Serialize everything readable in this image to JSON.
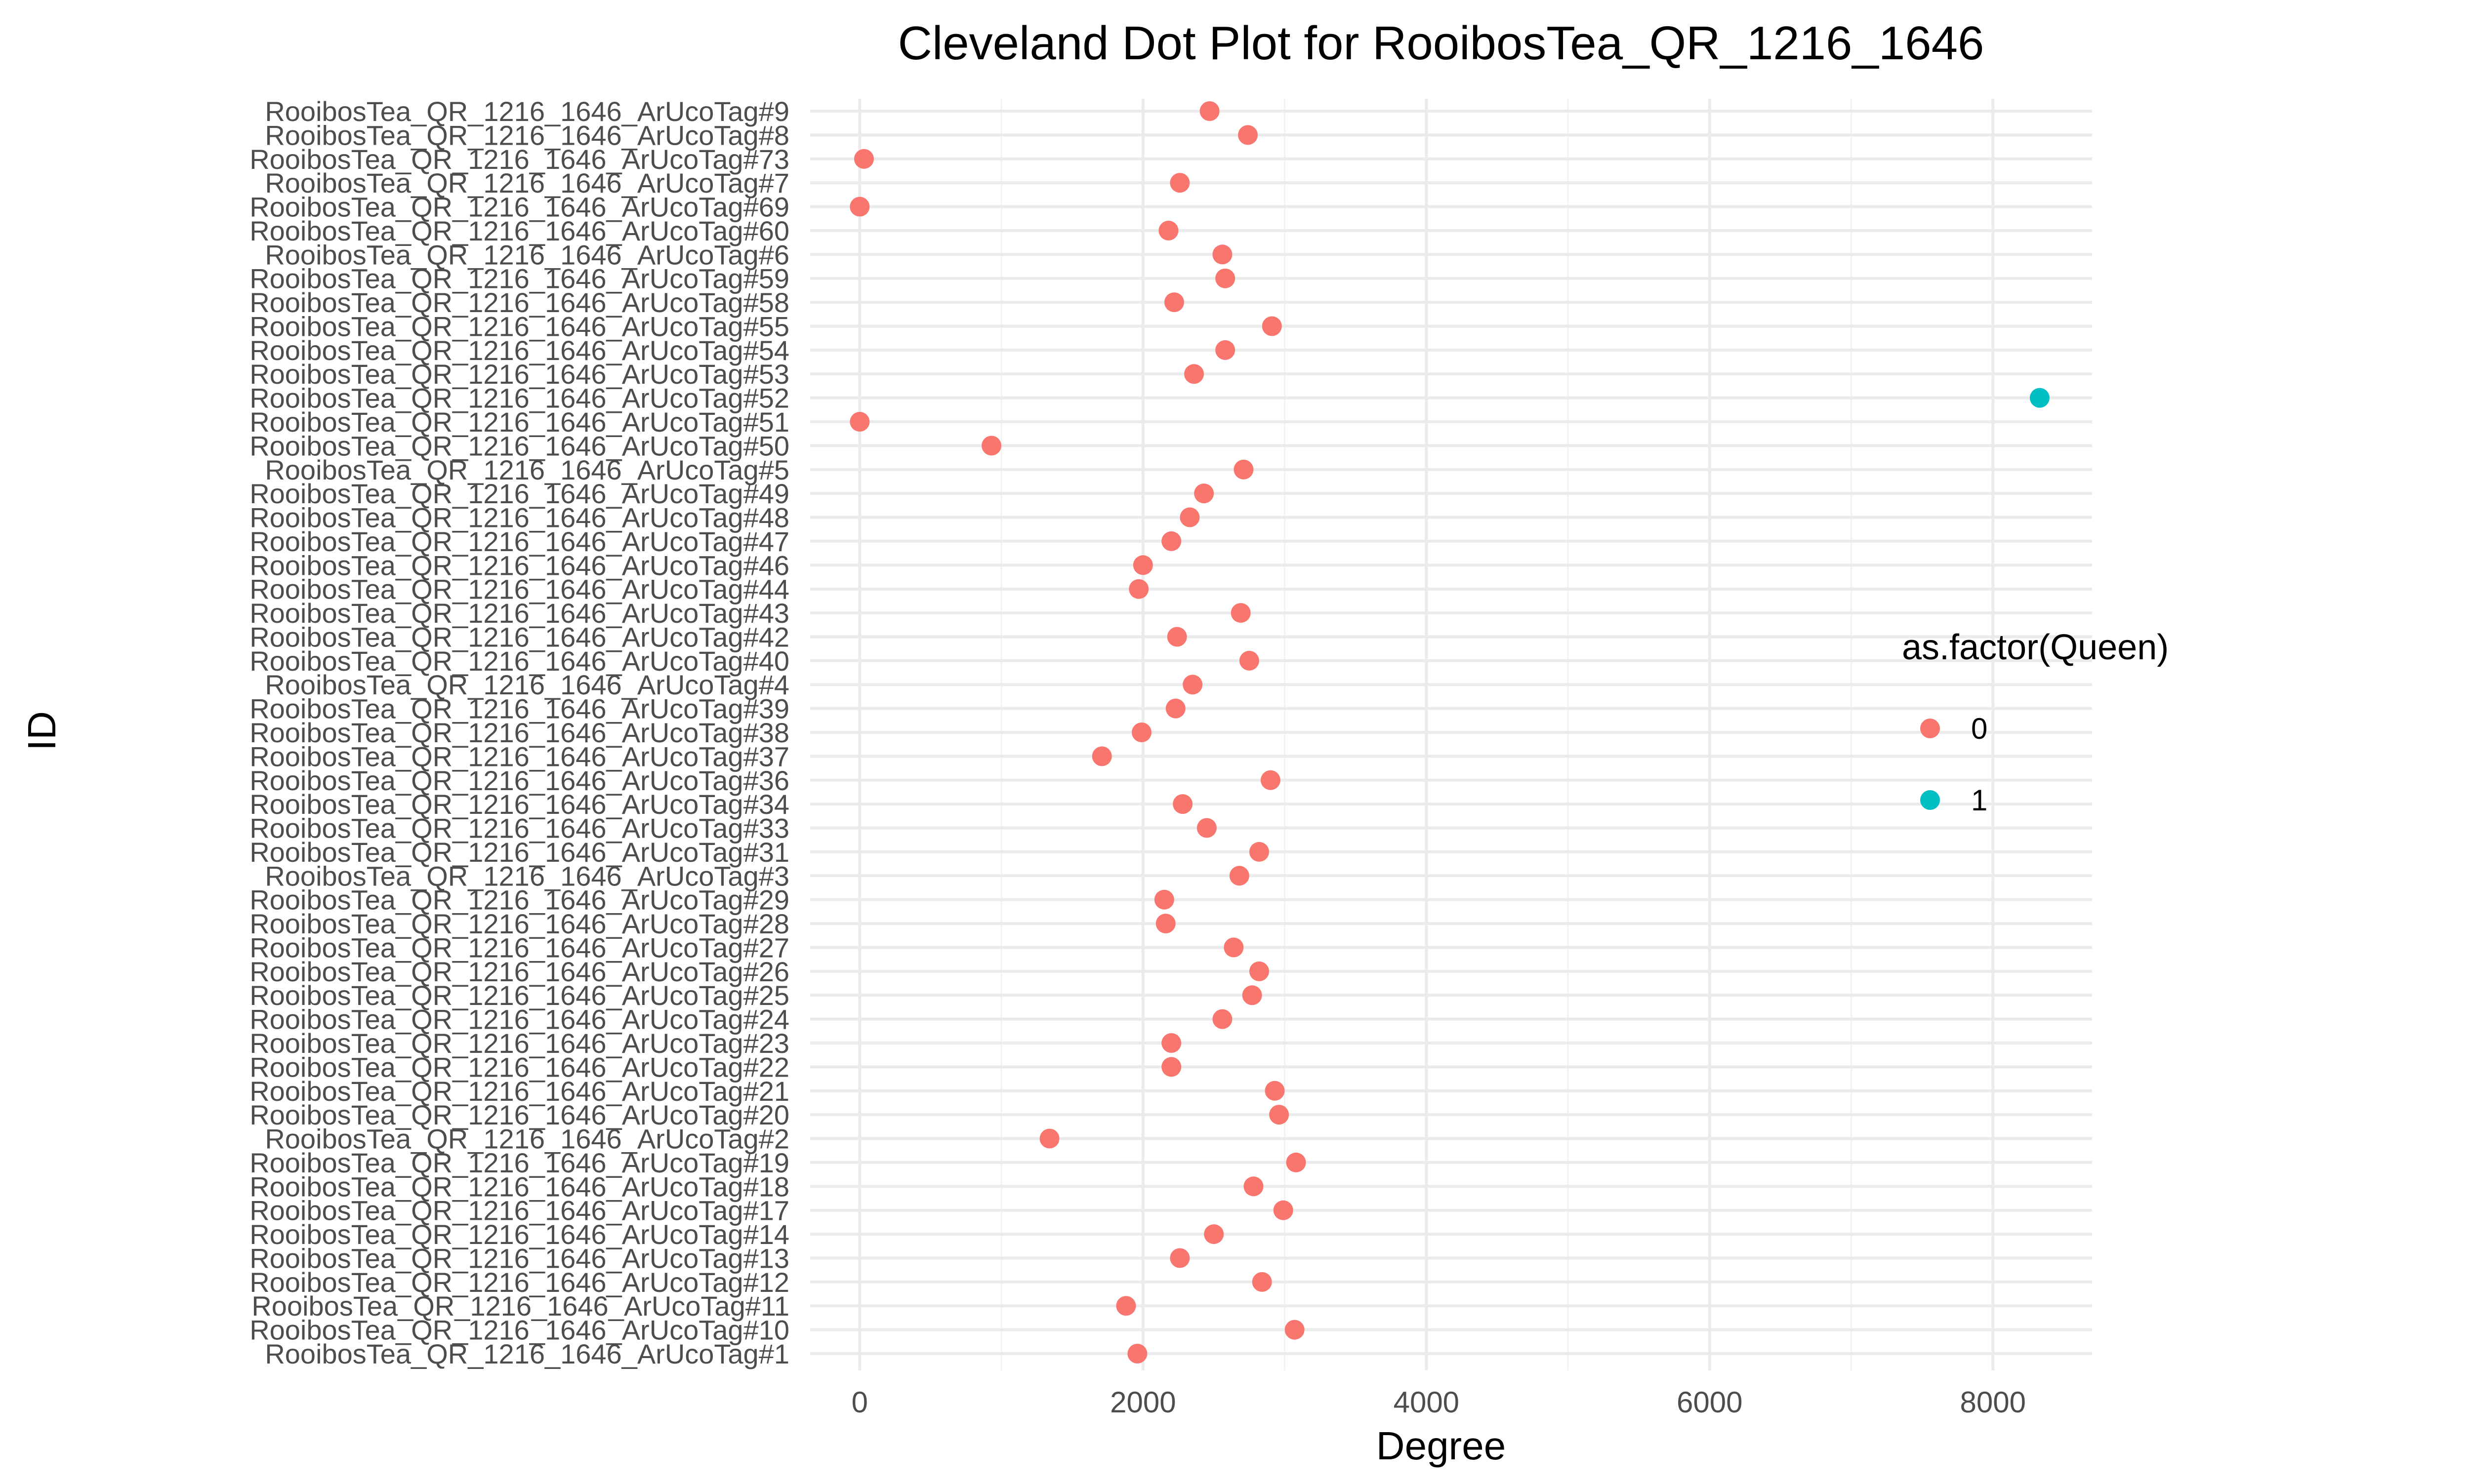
{
  "chart_data": {
    "type": "scatter",
    "title": "Cleveland Dot Plot for RooibosTea_QR_1216_1646",
    "xlabel": "Degree",
    "ylabel": "ID",
    "xlim": [
      -350,
      8700
    ],
    "x_ticks": [
      "0",
      "2000",
      "4000",
      "6000",
      "8000"
    ],
    "x_tick_values": [
      0,
      2000,
      4000,
      6000,
      8000
    ],
    "grid": true,
    "legend": {
      "title": "as.factor(Queen)",
      "position": "right",
      "entries": [
        {
          "label": "0",
          "color": "#F8766D"
        },
        {
          "label": "1",
          "color": "#00BFC4"
        }
      ]
    },
    "categories": [
      "RooibosTea_QR_1216_1646_ArUcoTag#9",
      "RooibosTea_QR_1216_1646_ArUcoTag#8",
      "RooibosTea_QR_1216_1646_ArUcoTag#73",
      "RooibosTea_QR_1216_1646_ArUcoTag#7",
      "RooibosTea_QR_1216_1646_ArUcoTag#69",
      "RooibosTea_QR_1216_1646_ArUcoTag#60",
      "RooibosTea_QR_1216_1646_ArUcoTag#6",
      "RooibosTea_QR_1216_1646_ArUcoTag#59",
      "RooibosTea_QR_1216_1646_ArUcoTag#58",
      "RooibosTea_QR_1216_1646_ArUcoTag#55",
      "RooibosTea_QR_1216_1646_ArUcoTag#54",
      "RooibosTea_QR_1216_1646_ArUcoTag#53",
      "RooibosTea_QR_1216_1646_ArUcoTag#52",
      "RooibosTea_QR_1216_1646_ArUcoTag#51",
      "RooibosTea_QR_1216_1646_ArUcoTag#50",
      "RooibosTea_QR_1216_1646_ArUcoTag#5",
      "RooibosTea_QR_1216_1646_ArUcoTag#49",
      "RooibosTea_QR_1216_1646_ArUcoTag#48",
      "RooibosTea_QR_1216_1646_ArUcoTag#47",
      "RooibosTea_QR_1216_1646_ArUcoTag#46",
      "RooibosTea_QR_1216_1646_ArUcoTag#44",
      "RooibosTea_QR_1216_1646_ArUcoTag#43",
      "RooibosTea_QR_1216_1646_ArUcoTag#42",
      "RooibosTea_QR_1216_1646_ArUcoTag#40",
      "RooibosTea_QR_1216_1646_ArUcoTag#4",
      "RooibosTea_QR_1216_1646_ArUcoTag#39",
      "RooibosTea_QR_1216_1646_ArUcoTag#38",
      "RooibosTea_QR_1216_1646_ArUcoTag#37",
      "RooibosTea_QR_1216_1646_ArUcoTag#36",
      "RooibosTea_QR_1216_1646_ArUcoTag#34",
      "RooibosTea_QR_1216_1646_ArUcoTag#33",
      "RooibosTea_QR_1216_1646_ArUcoTag#31",
      "RooibosTea_QR_1216_1646_ArUcoTag#3",
      "RooibosTea_QR_1216_1646_ArUcoTag#29",
      "RooibosTea_QR_1216_1646_ArUcoTag#28",
      "RooibosTea_QR_1216_1646_ArUcoTag#27",
      "RooibosTea_QR_1216_1646_ArUcoTag#26",
      "RooibosTea_QR_1216_1646_ArUcoTag#25",
      "RooibosTea_QR_1216_1646_ArUcoTag#24",
      "RooibosTea_QR_1216_1646_ArUcoTag#23",
      "RooibosTea_QR_1216_1646_ArUcoTag#22",
      "RooibosTea_QR_1216_1646_ArUcoTag#21",
      "RooibosTea_QR_1216_1646_ArUcoTag#20",
      "RooibosTea_QR_1216_1646_ArUcoTag#2",
      "RooibosTea_QR_1216_1646_ArUcoTag#19",
      "RooibosTea_QR_1216_1646_ArUcoTag#18",
      "RooibosTea_QR_1216_1646_ArUcoTag#17",
      "RooibosTea_QR_1216_1646_ArUcoTag#14",
      "RooibosTea_QR_1216_1646_ArUcoTag#13",
      "RooibosTea_QR_1216_1646_ArUcoTag#12",
      "RooibosTea_QR_1216_1646_ArUcoTag#11",
      "RooibosTea_QR_1216_1646_ArUcoTag#10",
      "RooibosTea_QR_1216_1646_ArUcoTag#1"
    ],
    "values": [
      2470,
      2740,
      30,
      2260,
      0,
      2180,
      2560,
      2580,
      2220,
      2910,
      2580,
      2360,
      8330,
      0,
      930,
      2710,
      2430,
      2330,
      2200,
      2000,
      1970,
      2690,
      2240,
      2750,
      2350,
      2230,
      1990,
      1710,
      2900,
      2280,
      2450,
      2820,
      2680,
      2150,
      2160,
      2640,
      2820,
      2770,
      2560,
      2200,
      2200,
      2930,
      2960,
      1340,
      3080,
      2780,
      2990,
      2500,
      2260,
      2840,
      1880,
      3070,
      1960
    ],
    "groups": [
      "0",
      "0",
      "0",
      "0",
      "0",
      "0",
      "0",
      "0",
      "0",
      "0",
      "0",
      "0",
      "1",
      "0",
      "0",
      "0",
      "0",
      "0",
      "0",
      "0",
      "0",
      "0",
      "0",
      "0",
      "0",
      "0",
      "0",
      "0",
      "0",
      "0",
      "0",
      "0",
      "0",
      "0",
      "0",
      "0",
      "0",
      "0",
      "0",
      "0",
      "0",
      "0",
      "0",
      "0",
      "0",
      "0",
      "0",
      "0",
      "0",
      "0",
      "0",
      "0",
      "0"
    ]
  }
}
